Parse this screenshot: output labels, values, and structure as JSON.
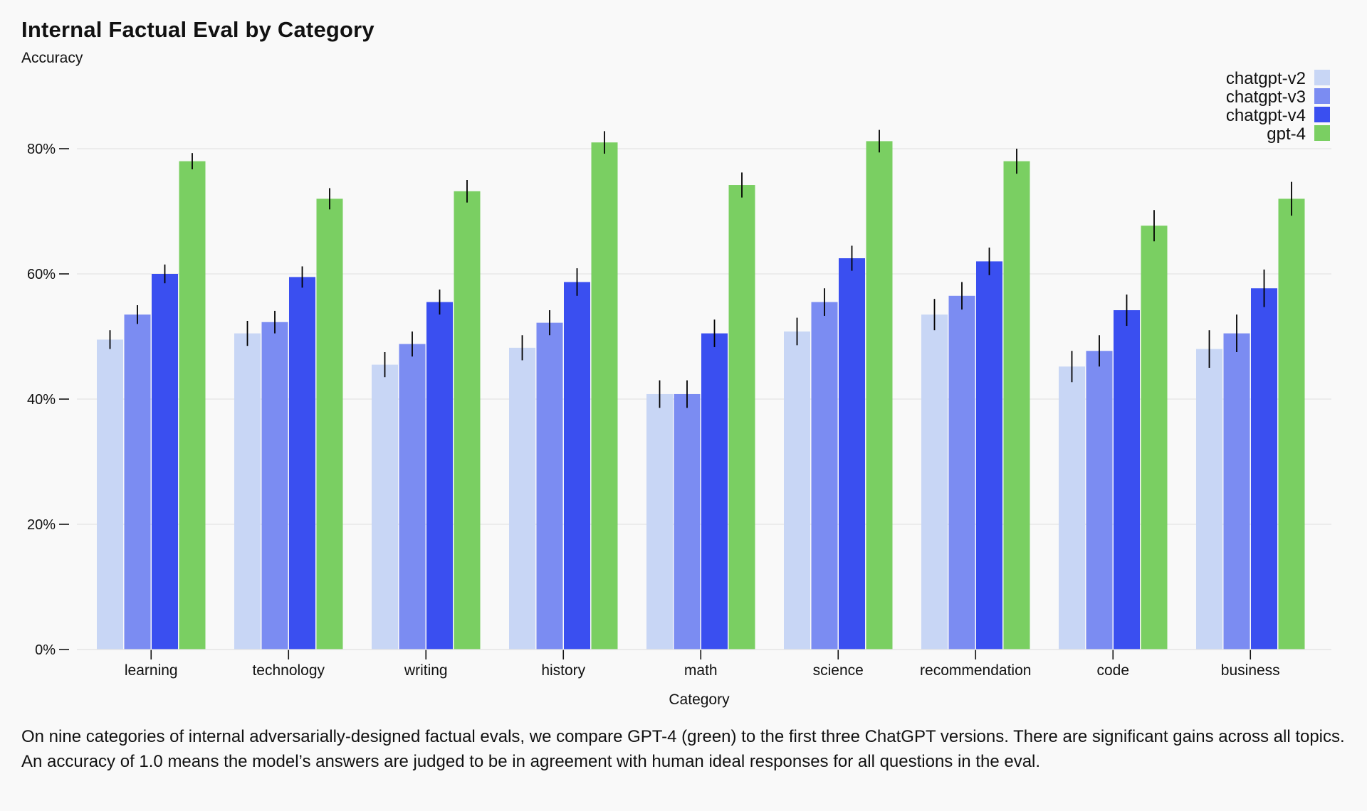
{
  "chart_data": {
    "type": "bar",
    "title": "Internal Factual Eval by Category",
    "ylabel": "Accuracy",
    "xlabel": "Category",
    "ylim": [
      0,
      0.95
    ],
    "yticks": [
      0,
      0.2,
      0.4,
      0.6,
      0.8
    ],
    "ytick_labels": [
      "0%",
      "20%",
      "40%",
      "60%",
      "80%"
    ],
    "grid": true,
    "legend_position": "top-right",
    "categories": [
      "learning",
      "technology",
      "writing",
      "history",
      "math",
      "science",
      "recommendation",
      "code",
      "business"
    ],
    "series": [
      {
        "name": "chatgpt-v2",
        "color": "#c8d6f5",
        "values": [
          0.495,
          0.505,
          0.455,
          0.482,
          0.408,
          0.508,
          0.535,
          0.452,
          0.48
        ],
        "error": [
          0.015,
          0.02,
          0.02,
          0.02,
          0.022,
          0.022,
          0.025,
          0.025,
          0.03
        ]
      },
      {
        "name": "chatgpt-v3",
        "color": "#7b8cf2",
        "values": [
          0.535,
          0.523,
          0.488,
          0.522,
          0.408,
          0.555,
          0.565,
          0.477,
          0.505
        ],
        "error": [
          0.015,
          0.018,
          0.02,
          0.02,
          0.022,
          0.022,
          0.022,
          0.025,
          0.03
        ]
      },
      {
        "name": "chatgpt-v4",
        "color": "#3a4ff0",
        "values": [
          0.6,
          0.595,
          0.555,
          0.587,
          0.505,
          0.625,
          0.62,
          0.542,
          0.577
        ],
        "error": [
          0.015,
          0.017,
          0.02,
          0.022,
          0.022,
          0.02,
          0.022,
          0.025,
          0.03
        ]
      },
      {
        "name": "gpt-4",
        "color": "#7acf62",
        "values": [
          0.78,
          0.72,
          0.732,
          0.81,
          0.742,
          0.812,
          0.78,
          0.677,
          0.72
        ],
        "error": [
          0.013,
          0.017,
          0.018,
          0.018,
          0.02,
          0.018,
          0.02,
          0.025,
          0.027
        ]
      }
    ]
  },
  "caption": "On nine categories of internal adversarially-designed factual evals, we compare GPT-4 (green) to the first three ChatGPT versions. There are significant gains across all topics. An accuracy of 1.0 means the model’s answers are judged to be in agreement with human ideal responses for all questions in the eval."
}
